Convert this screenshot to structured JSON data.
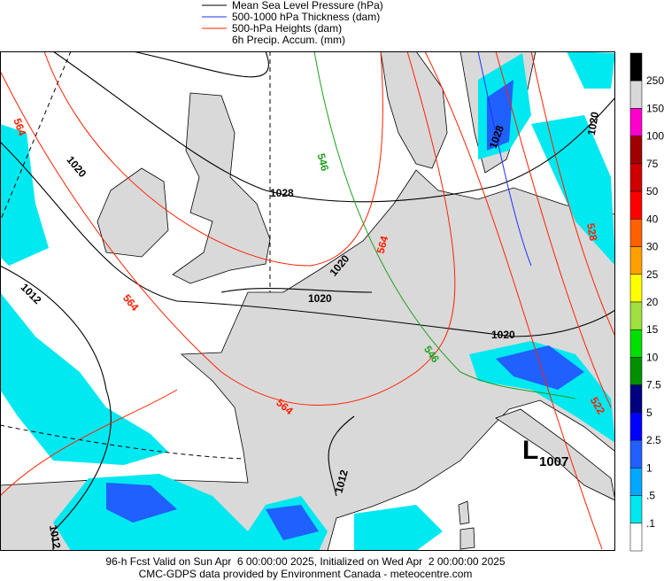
{
  "legend": [
    "Mean Sea Level Pressure (hPa)",
    "500-1000 hPa Thickness (dam)",
    "500-hPa Heights (dam)",
    "6h Precip. Accum. (mm)"
  ],
  "colorbar": {
    "colors": [
      "#000000",
      "#d8d8d8",
      "#ff00cc",
      "#a00000",
      "#d00000",
      "#ff0000",
      "#ff6000",
      "#ffa000",
      "#ffff00",
      "#a0e040",
      "#00e000",
      "#009000",
      "#000080",
      "#0000ff",
      "#2060ff",
      "#00a8ff",
      "#00e8f0",
      "#ffffff"
    ],
    "labels": [
      "250",
      "150",
      "100",
      "75",
      "50",
      "40",
      "30",
      "25",
      "20",
      "15",
      "10",
      "7.5",
      "5",
      "2.5",
      "1",
      ".5",
      ".1"
    ]
  },
  "map_labels": [
    "564",
    "1020",
    "1028",
    "546",
    "564",
    "1020",
    "1020",
    "564",
    "1012",
    "546",
    "1020",
    "564",
    "1012",
    "1012",
    "528",
    "1028",
    "1020",
    "522"
  ],
  "low": {
    "symbol": "L",
    "pressure": "1007"
  },
  "footer": [
    "96-h Fcst Valid on Sun Apr  6 00:00:00 2025, Initialized on Wed Apr  2 00:00:00 2025",
    "CMC-GDPS data provided by Environment Canada - meteocentre.com"
  ]
}
